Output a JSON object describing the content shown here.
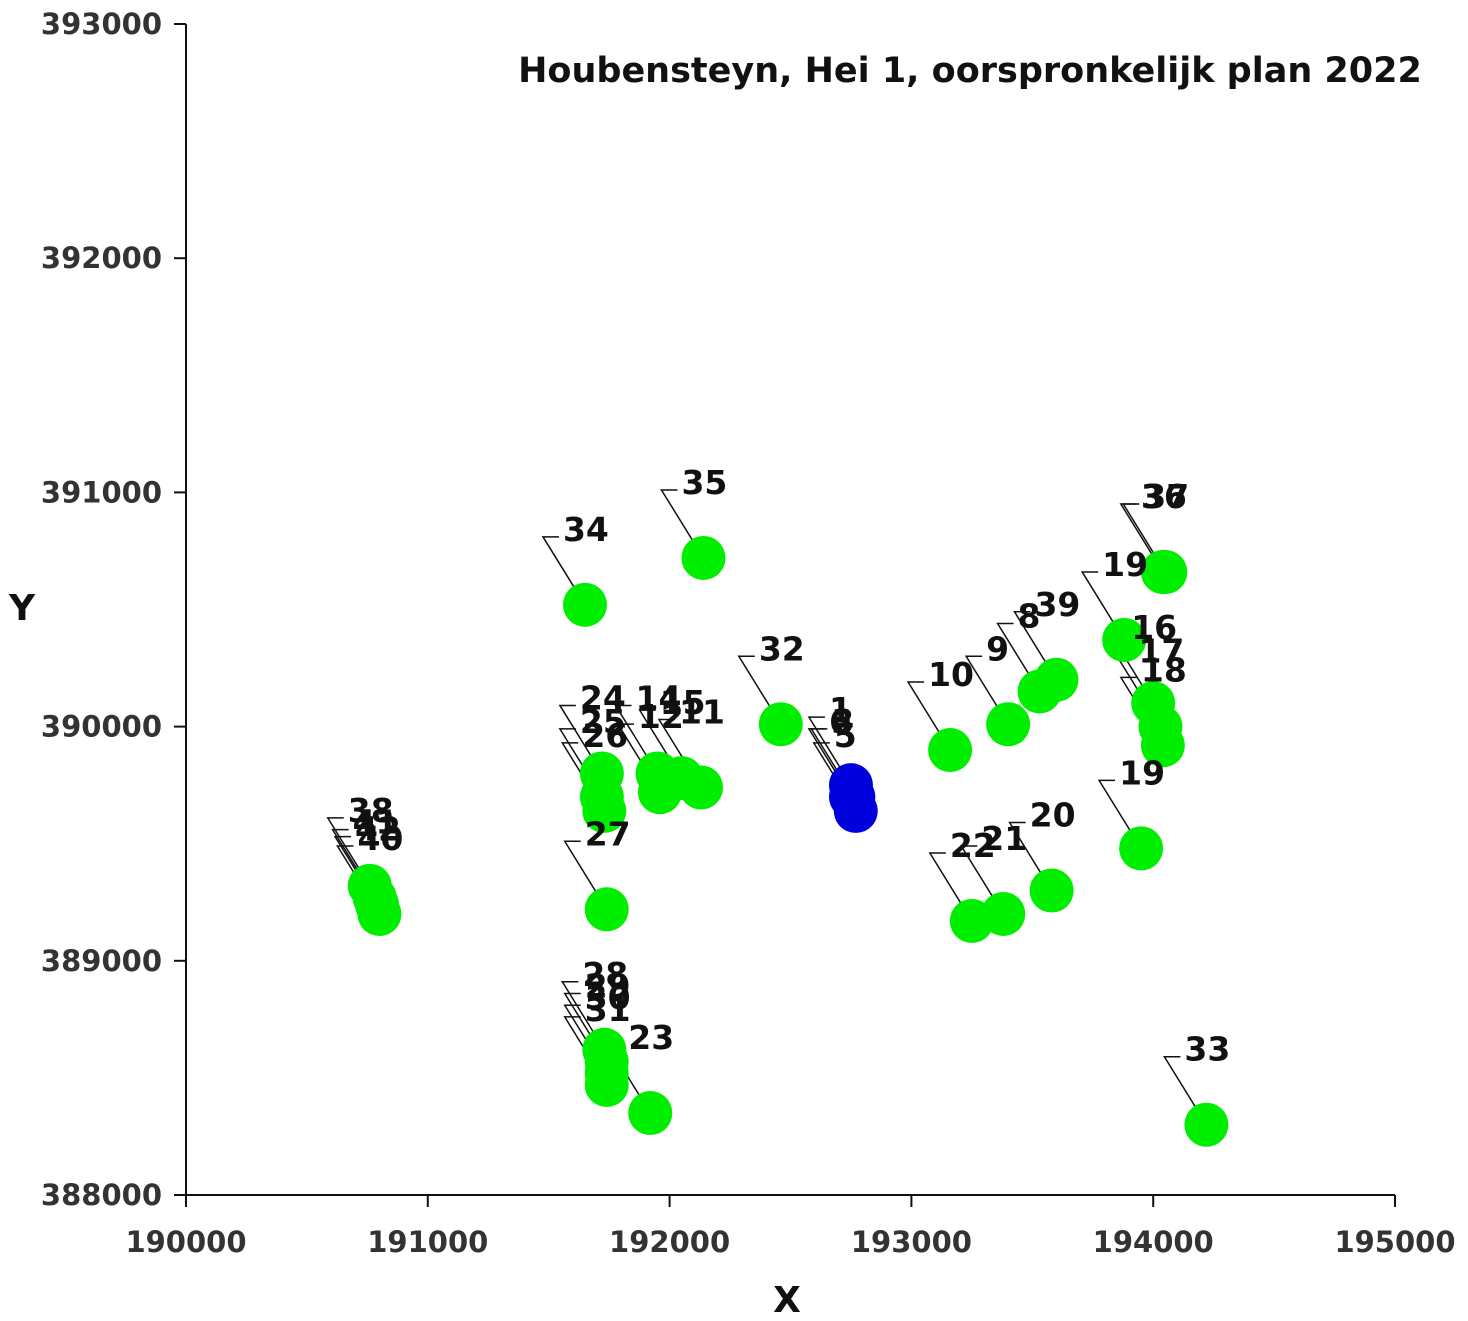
{
  "chart_data": {
    "type": "scatter",
    "title": "Houbensteyn, Hei 1, oorspronkelijk plan 2022",
    "xlabel": "X",
    "ylabel": "Y",
    "xlim": [
      190000,
      195000
    ],
    "ylim": [
      388000,
      393000
    ],
    "x_ticks": [
      190000,
      191000,
      192000,
      193000,
      194000,
      195000
    ],
    "y_ticks": [
      388000,
      389000,
      390000,
      391000,
      392000,
      393000
    ],
    "grid": false,
    "legend": "none",
    "colors": {
      "green": "#00ee00",
      "blue": "#0000dd"
    },
    "points": [
      {
        "label": "1",
        "x": 192750,
        "y": 389750,
        "color": "blue"
      },
      {
        "label": "3",
        "x": 192760,
        "y": 389700,
        "color": "blue"
      },
      {
        "label": "5",
        "x": 192770,
        "y": 389640,
        "color": "blue"
      },
      {
        "label": "6",
        "x": 192750,
        "y": 389700,
        "color": "blue"
      },
      {
        "label": "8",
        "x": 193530,
        "y": 390150,
        "color": "green"
      },
      {
        "label": "9",
        "x": 193400,
        "y": 390010,
        "color": "green"
      },
      {
        "label": "10",
        "x": 193160,
        "y": 389900,
        "color": "green"
      },
      {
        "label": "11",
        "x": 192130,
        "y": 389740,
        "color": "green"
      },
      {
        "label": "12",
        "x": 191960,
        "y": 389720,
        "color": "green"
      },
      {
        "label": "14",
        "x": 191950,
        "y": 389800,
        "color": "green"
      },
      {
        "label": "15",
        "x": 192050,
        "y": 389780,
        "color": "green"
      },
      {
        "label": "16",
        "x": 194000,
        "y": 390100,
        "color": "green"
      },
      {
        "label": "17",
        "x": 194030,
        "y": 390000,
        "color": "green"
      },
      {
        "label": "18",
        "x": 194040,
        "y": 389920,
        "color": "green"
      },
      {
        "label": "19",
        "x": 193950,
        "y": 389480,
        "color": "green"
      },
      {
        "label": "19",
        "x": 193880,
        "y": 390370,
        "color": "green"
      },
      {
        "label": "20",
        "x": 193580,
        "y": 389300,
        "color": "green"
      },
      {
        "label": "21",
        "x": 193380,
        "y": 389200,
        "color": "green"
      },
      {
        "label": "22",
        "x": 193250,
        "y": 389170,
        "color": "green"
      },
      {
        "label": "23",
        "x": 191920,
        "y": 388350,
        "color": "green"
      },
      {
        "label": "24",
        "x": 191720,
        "y": 389800,
        "color": "green"
      },
      {
        "label": "25",
        "x": 191720,
        "y": 389700,
        "color": "green"
      },
      {
        "label": "26",
        "x": 191730,
        "y": 389640,
        "color": "green"
      },
      {
        "label": "27",
        "x": 191740,
        "y": 389220,
        "color": "green"
      },
      {
        "label": "28",
        "x": 191730,
        "y": 388620,
        "color": "green"
      },
      {
        "label": "29",
        "x": 191740,
        "y": 388570,
        "color": "green"
      },
      {
        "label": "30",
        "x": 191740,
        "y": 388520,
        "color": "green"
      },
      {
        "label": "31",
        "x": 191740,
        "y": 388470,
        "color": "green"
      },
      {
        "label": "32",
        "x": 192460,
        "y": 390010,
        "color": "green"
      },
      {
        "label": "33",
        "x": 194220,
        "y": 388300,
        "color": "green"
      },
      {
        "label": "34",
        "x": 191650,
        "y": 390520,
        "color": "green"
      },
      {
        "label": "35",
        "x": 192140,
        "y": 390720,
        "color": "green"
      },
      {
        "label": "36",
        "x": 194040,
        "y": 390660,
        "color": "green"
      },
      {
        "label": "37",
        "x": 194050,
        "y": 390660,
        "color": "green"
      },
      {
        "label": "38",
        "x": 190760,
        "y": 389320,
        "color": "green"
      },
      {
        "label": "39",
        "x": 193600,
        "y": 390200,
        "color": "green"
      },
      {
        "label": "40",
        "x": 190800,
        "y": 389200,
        "color": "green"
      },
      {
        "label": "41",
        "x": 190780,
        "y": 389270,
        "color": "green"
      },
      {
        "label": "42",
        "x": 190790,
        "y": 389240,
        "color": "green"
      }
    ]
  }
}
